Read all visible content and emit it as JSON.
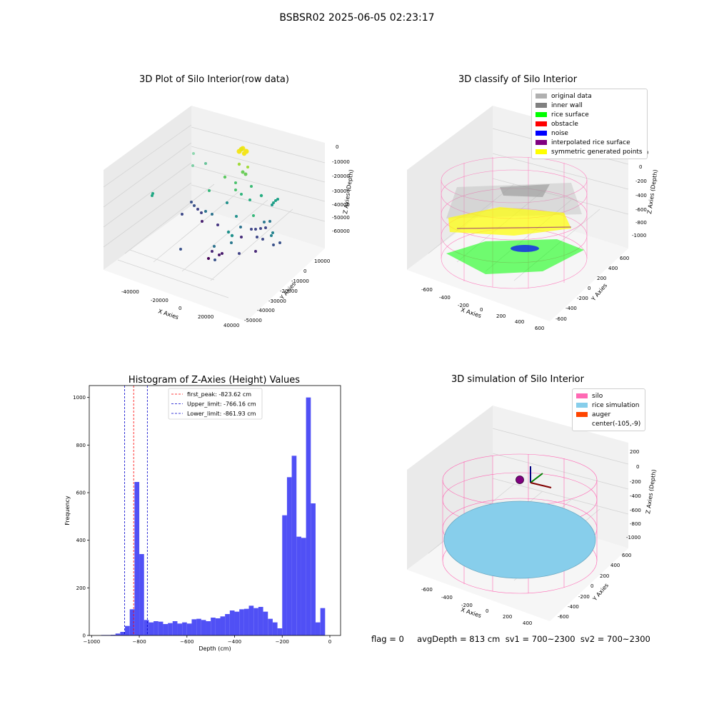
{
  "suptitle": "BSBSR02 2025-06-05 02:23:17",
  "colors": {
    "original_data": "#b0b0b0",
    "inner_wall": "#808080",
    "rice_surface": "#00ff00",
    "obstacle": "#ff0000",
    "noise": "#0000ff",
    "interpolated": "#800080",
    "symmetric": "#ffff00",
    "silo": "#ff69b4",
    "rice_sim": "#87ceeb",
    "auger": "#ff4500",
    "hist_bar": "#5050f5",
    "first_peak_line": "#ff0000",
    "limit_line": "#0000cc"
  },
  "panel1": {
    "title": "3D Plot of Silo Interior(row data)",
    "xlabel": "X Axies",
    "ylabel": "Y Axies",
    "zlabel": "Z Axies (Depth)",
    "xticks": [
      "-40000",
      "-20000",
      "0",
      "20000",
      "40000"
    ],
    "yticks": [
      "10000",
      "0",
      "-10000",
      "-20000",
      "-30000",
      "-40000",
      "-50000"
    ],
    "zticks": [
      "0",
      "-10000",
      "-20000",
      "-30000",
      "-40000",
      "-50000",
      "-60000"
    ]
  },
  "panel2": {
    "title": "3D classify of Silo Interior",
    "xlabel": "X Axies",
    "ylabel": "Y Axies",
    "zlabel": "Z Axies (Depth)",
    "xticks": [
      "-600",
      "-400",
      "-200",
      "0",
      "200",
      "400",
      "600"
    ],
    "yticks": [
      "600",
      "400",
      "200",
      "0",
      "-200",
      "-400",
      "-600"
    ],
    "zticks": [
      "200",
      "0",
      "-200",
      "-400",
      "-600",
      "-800",
      "-1000"
    ],
    "legend": [
      {
        "label": "original data",
        "color": "#b0b0b0"
      },
      {
        "label": "inner wall",
        "color": "#808080"
      },
      {
        "label": "rice surface",
        "color": "#00ff00"
      },
      {
        "label": "obstacle",
        "color": "#ff0000"
      },
      {
        "label": "noise",
        "color": "#0000ff"
      },
      {
        "label": "interpolated rice surface",
        "color": "#800080"
      },
      {
        "label": "symmetric generated points",
        "color": "#ffff00"
      }
    ]
  },
  "panel3": {
    "title": "3D simulation of Silo Interior",
    "xlabel": "X Axies",
    "ylabel": "Y Axies",
    "zlabel": "Z Axies (Depth)",
    "xticks": [
      "-600",
      "-400",
      "-200",
      "0",
      "200",
      "400"
    ],
    "yticks": [
      "600",
      "400",
      "200",
      "0",
      "-200",
      "-400",
      "-600"
    ],
    "zticks": [
      "200",
      "0",
      "-200",
      "-400",
      "-600",
      "-800",
      "-1000"
    ],
    "legend": [
      {
        "label": "silo",
        "color": "#ff69b4"
      },
      {
        "label": "rice simulation",
        "color": "#87ceeb"
      },
      {
        "label": "auger",
        "color": "#ff4500"
      },
      {
        "label": "center(-105,-9)",
        "color": ""
      }
    ]
  },
  "footer": "flag = 0     avgDepth = 813 cm  sv1 = 700~2300  sv2 = 700~2300",
  "chart_data": [
    {
      "type": "scatter",
      "title": "3D Plot of Silo Interior(row data)",
      "xlabel": "X Axies",
      "ylabel": "Y Axies",
      "zlabel": "Z Axies (Depth)",
      "xlim": [
        -50000,
        45000
      ],
      "ylim": [
        -55000,
        15000
      ],
      "zlim": [
        -65000,
        5000
      ],
      "grid": true
    },
    {
      "type": "scatter",
      "title": "3D classify of Silo Interior",
      "xlabel": "X Axies",
      "ylabel": "Y Axies",
      "zlabel": "Z Axies (Depth)",
      "xlim": [
        -700,
        700
      ],
      "ylim": [
        -700,
        700
      ],
      "zlim": [
        -1100,
        250
      ],
      "legend_position": "top-right",
      "series": [
        {
          "name": "original data"
        },
        {
          "name": "inner wall"
        },
        {
          "name": "rice surface"
        },
        {
          "name": "obstacle"
        },
        {
          "name": "noise"
        },
        {
          "name": "interpolated rice surface"
        },
        {
          "name": "symmetric generated points"
        }
      ]
    },
    {
      "type": "bar",
      "title": "Histogram of Z-Axies (Height) Values",
      "xlabel": "Depth (cm)",
      "ylabel": "Frequency",
      "xlim": [
        -1010,
        45
      ],
      "ylim": [
        0,
        1050
      ],
      "xticks": [
        -1000,
        -800,
        -600,
        -400,
        -200,
        0
      ],
      "yticks": [
        0,
        200,
        400,
        600,
        800,
        1000
      ],
      "bin_width": 20,
      "bins": [
        {
          "x": -960,
          "y": 2
        },
        {
          "x": -940,
          "y": 2
        },
        {
          "x": -920,
          "y": 3
        },
        {
          "x": -900,
          "y": 8
        },
        {
          "x": -880,
          "y": 15
        },
        {
          "x": -860,
          "y": 40
        },
        {
          "x": -840,
          "y": 110
        },
        {
          "x": -820,
          "y": 645
        },
        {
          "x": -800,
          "y": 342
        },
        {
          "x": -780,
          "y": 65
        },
        {
          "x": -760,
          "y": 55
        },
        {
          "x": -740,
          "y": 60
        },
        {
          "x": -720,
          "y": 58
        },
        {
          "x": -700,
          "y": 48
        },
        {
          "x": -680,
          "y": 52
        },
        {
          "x": -660,
          "y": 60
        },
        {
          "x": -640,
          "y": 50
        },
        {
          "x": -620,
          "y": 55
        },
        {
          "x": -600,
          "y": 50
        },
        {
          "x": -580,
          "y": 68
        },
        {
          "x": -560,
          "y": 70
        },
        {
          "x": -540,
          "y": 65
        },
        {
          "x": -520,
          "y": 60
        },
        {
          "x": -500,
          "y": 75
        },
        {
          "x": -480,
          "y": 72
        },
        {
          "x": -460,
          "y": 80
        },
        {
          "x": -440,
          "y": 90
        },
        {
          "x": -420,
          "y": 105
        },
        {
          "x": -400,
          "y": 100
        },
        {
          "x": -380,
          "y": 110
        },
        {
          "x": -360,
          "y": 112
        },
        {
          "x": -340,
          "y": 125
        },
        {
          "x": -320,
          "y": 115
        },
        {
          "x": -300,
          "y": 120
        },
        {
          "x": -280,
          "y": 100
        },
        {
          "x": -260,
          "y": 70
        },
        {
          "x": -240,
          "y": 55
        },
        {
          "x": -220,
          "y": 30
        },
        {
          "x": -200,
          "y": 505
        },
        {
          "x": -180,
          "y": 665
        },
        {
          "x": -160,
          "y": 755
        },
        {
          "x": -140,
          "y": 415
        },
        {
          "x": -120,
          "y": 410
        },
        {
          "x": -100,
          "y": 1000
        },
        {
          "x": -80,
          "y": 555
        },
        {
          "x": -60,
          "y": 55
        },
        {
          "x": -40,
          "y": 115
        }
      ],
      "vlines": [
        {
          "label": "first_peak: -823.62 cm",
          "x": -823.62,
          "color": "#ff0000"
        },
        {
          "label": "Upper_limit: -766.16 cm",
          "x": -766.16,
          "color": "#0000cc"
        },
        {
          "label": "Lower_limit: -861.93 cm",
          "x": -861.93,
          "color": "#0000cc"
        }
      ],
      "legend_position": "top-center"
    },
    {
      "type": "scatter",
      "title": "3D simulation of Silo Interior",
      "xlabel": "X Axies",
      "ylabel": "Y Axies",
      "zlabel": "Z Axies (Depth)",
      "xlim": [
        -700,
        500
      ],
      "ylim": [
        -700,
        700
      ],
      "zlim": [
        -1100,
        250
      ],
      "legend_position": "top-right",
      "series": [
        {
          "name": "silo"
        },
        {
          "name": "rice simulation"
        },
        {
          "name": "auger"
        }
      ],
      "annotations": [
        "center(-105,-9)"
      ]
    }
  ]
}
